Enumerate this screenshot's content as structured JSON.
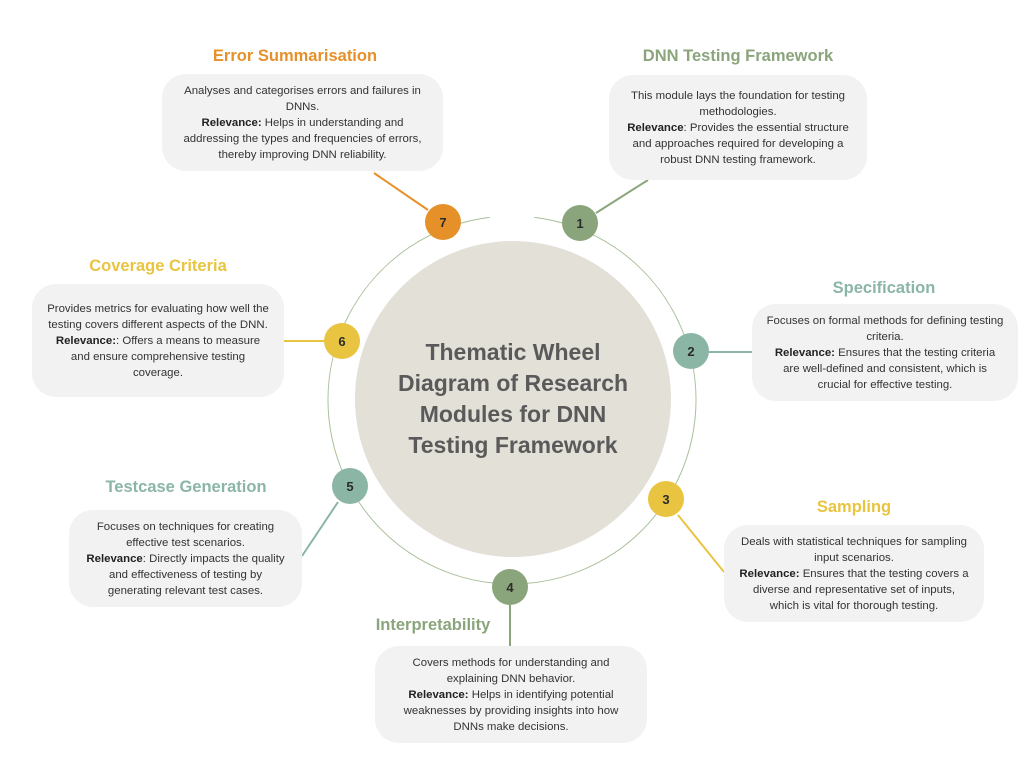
{
  "center_title": "Thematic Wheel Diagram of Research Modules for DNN Testing Framework",
  "colors": {
    "green": "#8aa57c",
    "teal": "#8bb5a4",
    "yellow": "#e8c441",
    "orange": "#e6902a",
    "disc": "#e3e0d8",
    "card": "#f3f2f2"
  },
  "modules": [
    {
      "number": "1",
      "title": "DNN Testing Framework",
      "color": "#8aa57c",
      "description": "This module lays the foundation for testing methodologies.",
      "relevance_label": "Relevance",
      "relevance_text": ": Provides the essential structure and approaches required for developing a robust DNN testing framework."
    },
    {
      "number": "2",
      "title": "Specification",
      "color": "#8bb5a4",
      "description": "Focuses on formal methods for defining testing criteria.",
      "relevance_label": "Relevance:",
      "relevance_text": " Ensures that the testing criteria are well-defined and consistent, which is crucial for effective testing."
    },
    {
      "number": "3",
      "title": "Sampling",
      "color": "#e8c441",
      "description": "Deals with statistical techniques for sampling input scenarios.",
      "relevance_label": "Relevance:",
      "relevance_text": " Ensures that the testing covers a diverse and representative set of inputs, which is vital for thorough testing."
    },
    {
      "number": "4",
      "title": "Interpretability",
      "color": "#8aa57c",
      "description": "Covers methods for understanding and explaining DNN behavior.",
      "relevance_label": "Relevance:",
      "relevance_text": " Helps in identifying potential weaknesses by providing insights into how DNNs make decisions."
    },
    {
      "number": "5",
      "title": "Testcase Generation",
      "color": "#8bb5a4",
      "description": "Focuses on techniques for creating effective test scenarios.",
      "relevance_label": "Relevance",
      "relevance_text": ": Directly impacts the quality and effectiveness of testing by generating relevant test cases."
    },
    {
      "number": "6",
      "title": "Coverage Criteria",
      "color": "#e8c441",
      "description": "Provides metrics for evaluating how well the testing covers different aspects of the DNN.",
      "relevance_label": "Relevance:",
      "relevance_text": ": Offers a means to measure and ensure comprehensive testing coverage."
    },
    {
      "number": "7",
      "title": "Error Summarisation",
      "color": "#e6902a",
      "description": "Analyses and categorises errors and failures in DNNs.",
      "relevance_label": "Relevance:",
      "relevance_text": " Helps in understanding and addressing the types and frequencies of errors, thereby improving DNN reliability."
    }
  ]
}
